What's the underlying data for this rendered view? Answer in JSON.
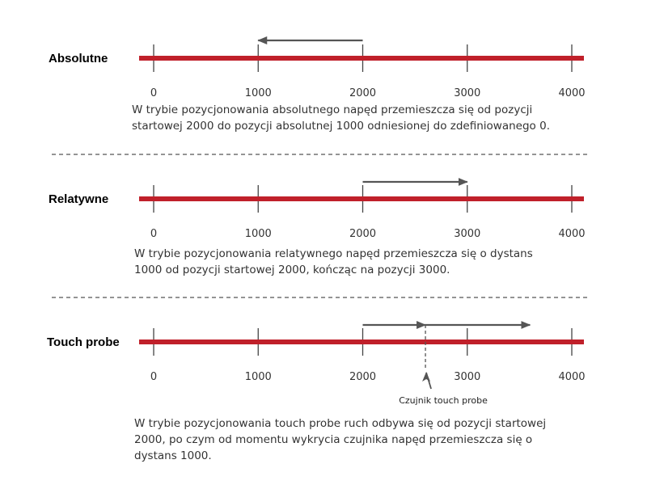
{
  "colors": {
    "axis": "#c0202a",
    "tick": "#444444",
    "arrow": "#555555",
    "divider": "#555555"
  },
  "axis": {
    "min": 0,
    "max": 4000,
    "ticks": [
      "0",
      "1000",
      "2000",
      "3000",
      "4000"
    ]
  },
  "rows": [
    {
      "label": "Absolutne",
      "arrows": [
        {
          "from": 2000,
          "to": 1000
        }
      ],
      "caption": [
        "W trybie pozycjonowania absolutnego napęd przemieszcza się od pozycji",
        "startowej 2000 do pozycji absolutnej 1000 odniesionej do zdefiniowanego 0."
      ]
    },
    {
      "label": "Relatywne",
      "arrows": [
        {
          "from": 2000,
          "to": 3000
        }
      ],
      "caption": [
        "W trybie pozycjonowania relatywnego napęd przemieszcza się o dystans",
        "1000 od pozycji startowej 2000, kończąc na pozycji 3000."
      ]
    },
    {
      "label": "Touch probe",
      "arrows": [
        {
          "from": 2000,
          "to": 2600
        },
        {
          "from": 2600,
          "to": 3600
        }
      ],
      "probe": {
        "position": 2600,
        "label": "Czujnik touch probe"
      },
      "caption": [
        "W trybie pozycjonowania touch probe ruch odbywa się od pozycji startowej",
        "2000, po czym od momentu wykrycia czujnika napęd przemieszcza się o",
        "dystans 1000."
      ]
    }
  ]
}
